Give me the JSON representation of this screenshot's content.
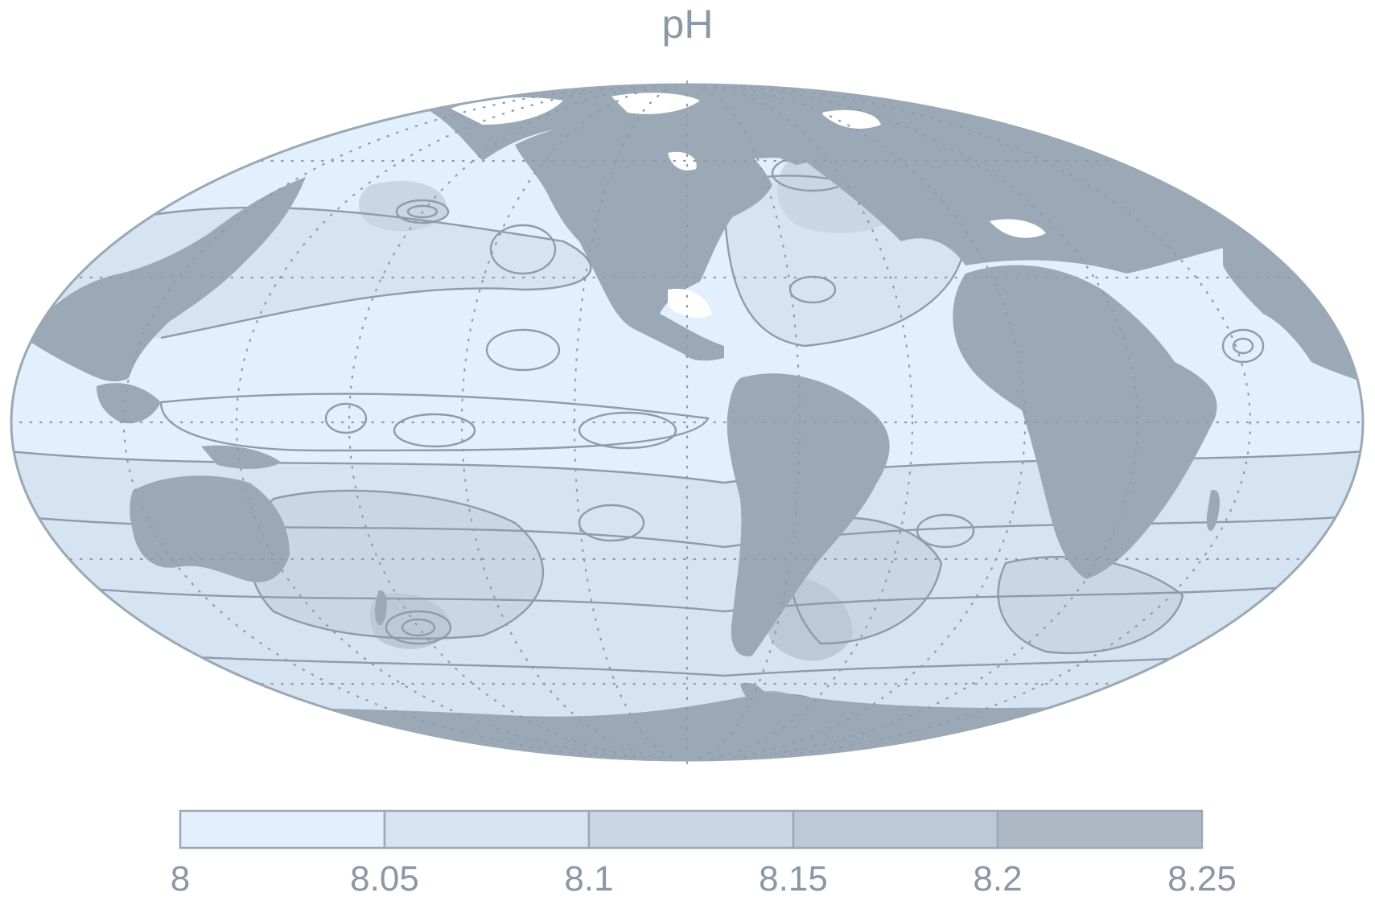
{
  "title": "pH",
  "colors": {
    "land": "#9ba8b5",
    "ocean_levels": [
      "#e2effc",
      "#d6e4f2",
      "#c9d7e5",
      "#bcc9d7",
      "#aeb9c5"
    ],
    "contour": "#8e9bab",
    "text": "#8b97a5"
  },
  "colorbar": {
    "min": 8,
    "max": 8.25,
    "ticks": [
      "8",
      "8.05",
      "8.1",
      "8.15",
      "8.2",
      "8.25"
    ]
  },
  "map": {
    "projection": "Mollweide",
    "graticule": "dotted",
    "contour_lines": "on"
  }
}
